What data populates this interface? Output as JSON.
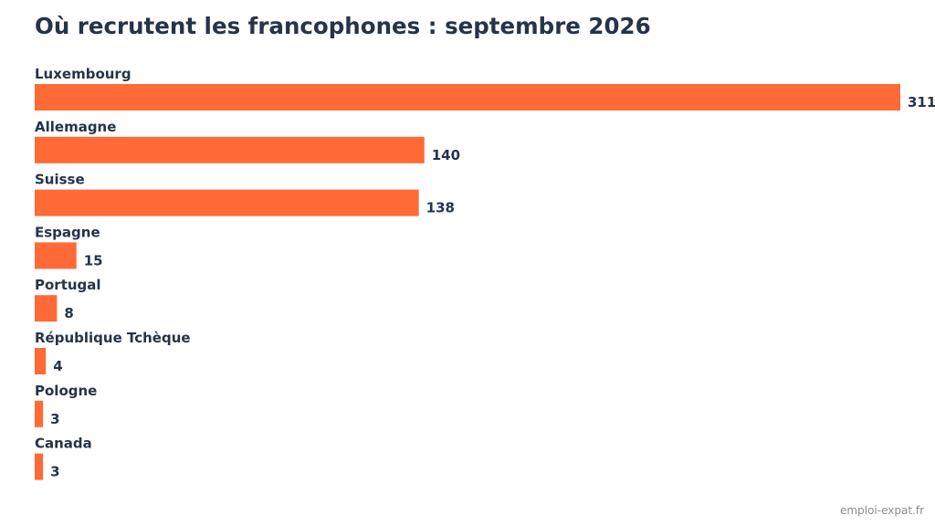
{
  "source": "emploi-expat.fr",
  "colors": {
    "bar": "#ff6a36",
    "text": "#253449"
  },
  "chart_data": {
    "type": "bar",
    "orientation": "horizontal",
    "title": "Où recrutent les francophones : septembre 2026",
    "categories": [
      "Luxembourg",
      "Allemagne",
      "Suisse",
      "Espagne",
      "Portugal",
      "République Tchèque",
      "Pologne",
      "Canada"
    ],
    "values": [
      311,
      140,
      138,
      15,
      8,
      4,
      3,
      3
    ],
    "value_labels": [
      "311",
      "140",
      "138",
      "15",
      "8",
      "4",
      "3",
      "3"
    ],
    "xlim": [
      0,
      311
    ],
    "grid": false,
    "legend": "none"
  }
}
